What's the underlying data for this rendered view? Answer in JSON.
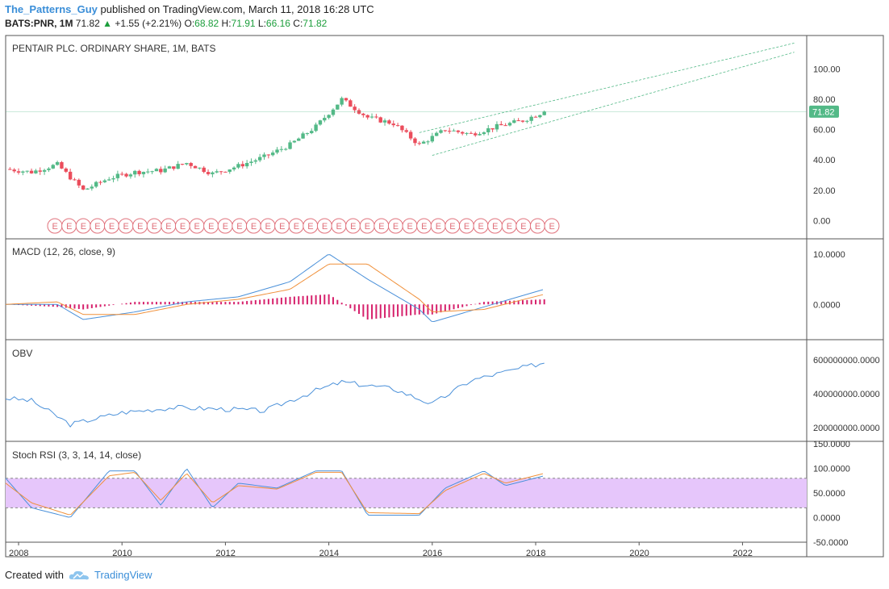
{
  "header": {
    "user": "The_Patterns_Guy",
    "published": "published on TradingView.com, March 11, 2018 16:28 UTC",
    "symbol": "BATS:PNR, 1M",
    "last": "71.82",
    "change": "+1.55 (+2.21%)",
    "o_label": "O:",
    "o_val": "68.82",
    "h_label": "H:",
    "h_val": "71.91",
    "l_label": "L:",
    "l_val": "66.16",
    "c_label": "C:",
    "c_val": "71.82"
  },
  "panes": {
    "price_title": "PENTAIR PLC. ORDINARY SHARE, 1M, BATS",
    "macd_title": "MACD (12, 26, close, 9)",
    "obv_title": "OBV",
    "stoch_title": "Stoch RSI (3, 3, 14, 14, close)"
  },
  "price_badge": "71.82",
  "footer": {
    "created": "Created with",
    "brand": "TradingView"
  },
  "colors": {
    "up": "#53b987",
    "down": "#eb4d5c",
    "blue": "#4a90d9",
    "orange": "#f0903a",
    "macd_hist": "#d6206b",
    "stoch_band": "#e6c6fb",
    "badge": "#53b987"
  },
  "chart_data": [
    {
      "type": "candlestick",
      "title": "PENTAIR PLC. ORDINARY SHARE, 1M, BATS",
      "y_ticks": [
        "100.00",
        "80.00",
        "60.00",
        "40.00",
        "20.00",
        "0.00"
      ],
      "ylim": [
        -12,
        122
      ],
      "x_ticks": [
        "2008",
        "2010",
        "2012",
        "2014",
        "2016",
        "2018",
        "2020",
        "2022"
      ],
      "x": [
        "2007-10",
        "2008-04",
        "2008-10",
        "2009-04",
        "2009-10",
        "2010-04",
        "2010-10",
        "2011-04",
        "2011-10",
        "2012-04",
        "2012-10",
        "2013-04",
        "2013-10",
        "2014-04",
        "2014-10",
        "2015-04",
        "2015-10",
        "2016-04",
        "2016-10",
        "2017-04",
        "2017-10",
        "2018-03"
      ],
      "close": [
        34,
        32,
        37,
        20,
        28,
        32,
        33,
        38,
        31,
        36,
        42,
        50,
        62,
        80,
        68,
        64,
        50,
        60,
        57,
        62,
        66,
        71.82
      ],
      "last_price": 71.82,
      "earnings_markers": "E",
      "trendlines": [
        {
          "from": [
            "2015-10",
            58
          ],
          "to": [
            "2023-01",
            117
          ]
        },
        {
          "from": [
            "2016-01",
            43
          ],
          "to": [
            "2023-01",
            111
          ]
        }
      ]
    },
    {
      "type": "line",
      "title": "MACD (12, 26, close, 9)",
      "y_ticks": [
        "10.0000",
        "0.0000"
      ],
      "ylim": [
        -7,
        13
      ],
      "x": [
        "2007-10",
        "2008-10",
        "2009-04",
        "2010-04",
        "2011-04",
        "2012-04",
        "2013-04",
        "2014-01",
        "2014-10",
        "2015-10",
        "2016-01",
        "2017-01",
        "2018-03"
      ],
      "series": [
        {
          "values": [
            0,
            0,
            -3,
            -1.5,
            0.5,
            1.5,
            4.5,
            10,
            5,
            -1,
            -3.5,
            -0.5,
            3
          ]
        },
        {
          "values": [
            0,
            0.5,
            -2,
            -2,
            0,
            1,
            3,
            8,
            8,
            1,
            -1.5,
            -1,
            2
          ]
        }
      ]
    },
    {
      "type": "line",
      "title": "OBV",
      "y_ticks": [
        "600000000.0000",
        "400000000.0000",
        "200000000.0000"
      ],
      "ylim": [
        120000000,
        720000000
      ],
      "x": [
        "2007-10",
        "2008-04",
        "2009-01",
        "2010-01",
        "2011-01",
        "2012-01",
        "2012-10",
        "2013-10",
        "2014-04",
        "2015-04",
        "2016-01",
        "2016-10",
        "2017-06",
        "2018-03"
      ],
      "values": [
        375000000,
        360000000,
        220000000,
        290000000,
        320000000,
        310000000,
        300000000,
        420000000,
        470000000,
        430000000,
        340000000,
        480000000,
        530000000,
        585000000
      ]
    },
    {
      "type": "line",
      "title": "Stoch RSI (3, 3, 14, 14, close)",
      "y_ticks": [
        "150.0000",
        "100.0000",
        "50.0000",
        "0.0000",
        "-50.0000"
      ],
      "ylim": [
        -50,
        155
      ],
      "band": [
        20,
        80
      ],
      "x": [
        "2007-10",
        "2008-04",
        "2009-01",
        "2009-10",
        "2010-04",
        "2010-10",
        "2011-04",
        "2011-10",
        "2012-04",
        "2013-01",
        "2013-10",
        "2014-04",
        "2014-10",
        "2015-10",
        "2016-04",
        "2017-01",
        "2017-06",
        "2018-03"
      ],
      "series": [
        {
          "values": [
            80,
            20,
            0,
            95,
            95,
            25,
            100,
            20,
            70,
            60,
            95,
            95,
            5,
            5,
            60,
            95,
            65,
            85
          ]
        },
        {
          "values": [
            70,
            30,
            5,
            85,
            92,
            35,
            90,
            30,
            65,
            58,
            92,
            92,
            10,
            8,
            55,
            90,
            70,
            90
          ]
        }
      ]
    }
  ]
}
